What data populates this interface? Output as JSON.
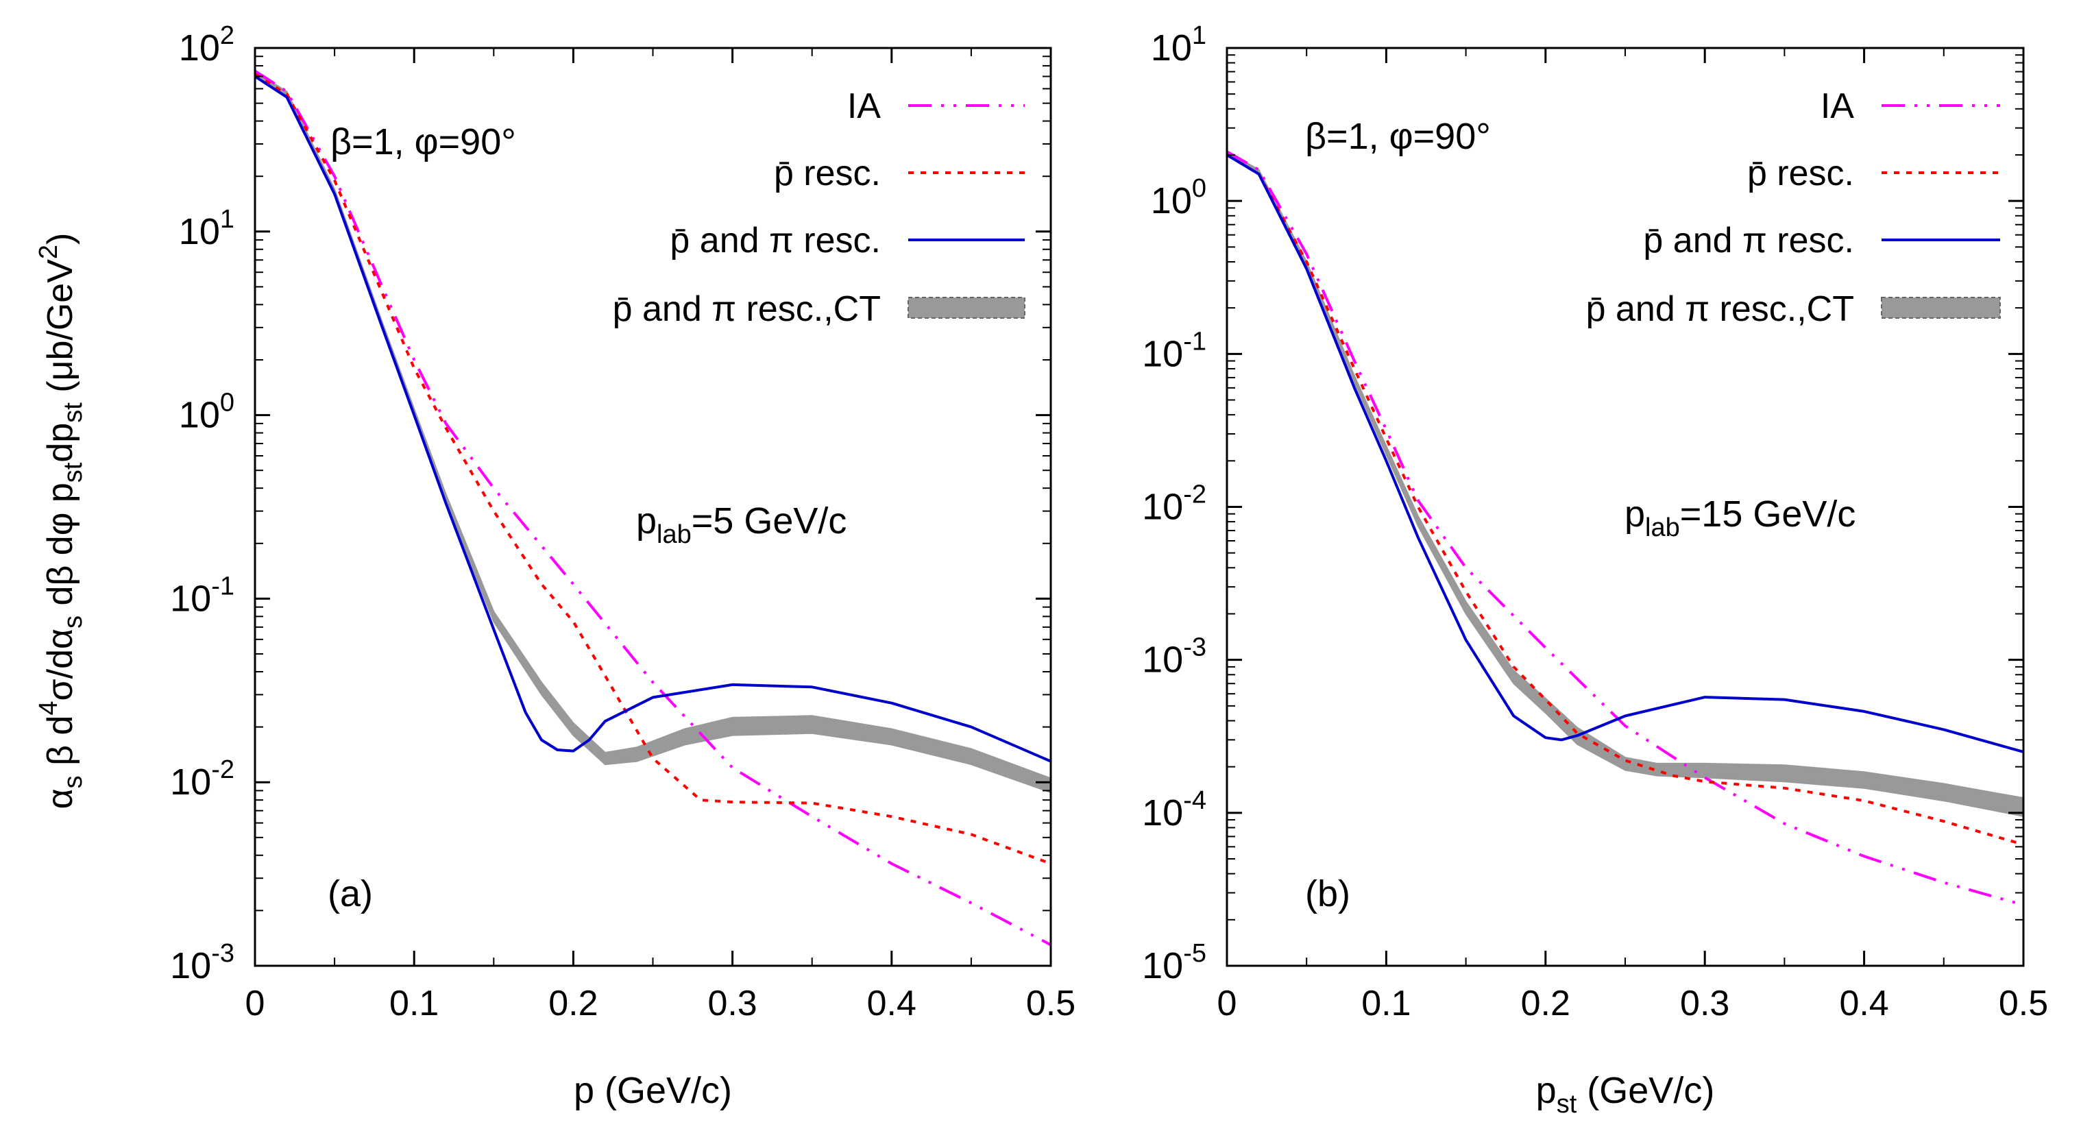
{
  "y_axis_label_parts": [
    "α",
    "s",
    " β d",
    "4",
    "σ/dα",
    "s",
    " dβ dφ p",
    "st",
    "dp",
    "st",
    " (μb/GeV",
    "2",
    ")"
  ],
  "legend": {
    "ia": "IA",
    "pbar_resc": "p̄ resc.",
    "pbar_pi_resc": "p̄ and π resc.",
    "pbar_pi_resc_ct": "p̄ and π resc.,CT"
  },
  "styles": {
    "ia_color": "#ff00ff",
    "pbar_color": "#ff0000",
    "pbar_pi_color": "#0000cc",
    "ct_color": "#999999",
    "axis_color": "#000000"
  },
  "chart_data": [
    {
      "type": "line",
      "panel_label": "(a)",
      "annotation_params": "β=1, φ=90°",
      "annotation_plab_main": "p",
      "annotation_plab_sub": "lab",
      "annotation_plab_value": "=5 GeV/c",
      "xlabel_main": "p",
      "xlabel_sub": "",
      "xlabel_unit": "(GeV/c)",
      "x_scale": "linear",
      "y_scale": "log",
      "xlim": [
        0,
        0.5
      ],
      "ylim_exp": [
        -3,
        2
      ],
      "x_tick_labels": [
        "0",
        "0.1",
        "0.2",
        "0.3",
        "0.4",
        "0.5"
      ],
      "y_tick_labels": [
        {
          "base": "10",
          "exp": "-3"
        },
        {
          "base": "10",
          "exp": "-2"
        },
        {
          "base": "10",
          "exp": "-1"
        },
        {
          "base": "10",
          "exp": "0"
        },
        {
          "base": "10",
          "exp": "1"
        },
        {
          "base": "10",
          "exp": "2"
        }
      ],
      "legend_position": "top-right",
      "series": [
        {
          "name": "IA",
          "style": "dash-dot-dot",
          "x": [
            0,
            0.02,
            0.05,
            0.08,
            0.1,
            0.12,
            0.15,
            0.2,
            0.25,
            0.3,
            0.35,
            0.4,
            0.45,
            0.5
          ],
          "y": [
            75,
            58,
            20,
            5,
            2.0,
            0.9,
            0.4,
            0.12,
            0.035,
            0.012,
            0.0065,
            0.0036,
            0.0022,
            0.0013
          ]
        },
        {
          "name": "p̄ resc.",
          "style": "dotted",
          "x": [
            0,
            0.02,
            0.05,
            0.08,
            0.1,
            0.12,
            0.15,
            0.18,
            0.2,
            0.22,
            0.25,
            0.28,
            0.3,
            0.35,
            0.4,
            0.45,
            0.5
          ],
          "y": [
            72,
            56,
            19,
            4.6,
            1.8,
            0.85,
            0.3,
            0.12,
            0.075,
            0.038,
            0.0135,
            0.008,
            0.0078,
            0.0077,
            0.0065,
            0.0052,
            0.0036
          ]
        },
        {
          "name": "p̄ and π resc.",
          "style": "solid",
          "x": [
            0,
            0.02,
            0.05,
            0.08,
            0.1,
            0.12,
            0.15,
            0.17,
            0.18,
            0.19,
            0.2,
            0.21,
            0.22,
            0.25,
            0.3,
            0.35,
            0.4,
            0.45,
            0.5
          ],
          "y": [
            70,
            54,
            16,
            3.0,
            1.0,
            0.33,
            0.068,
            0.024,
            0.017,
            0.015,
            0.0148,
            0.017,
            0.0215,
            0.029,
            0.034,
            0.033,
            0.027,
            0.02,
            0.013
          ]
        },
        {
          "name": "p̄ and π resc.,CT",
          "style": "band",
          "x": [
            0,
            0.02,
            0.05,
            0.08,
            0.1,
            0.12,
            0.15,
            0.18,
            0.2,
            0.22,
            0.24,
            0.27,
            0.3,
            0.35,
            0.4,
            0.45,
            0.5
          ],
          "y_low": [
            70,
            55,
            16,
            3.0,
            1.0,
            0.34,
            0.075,
            0.03,
            0.018,
            0.0125,
            0.013,
            0.016,
            0.018,
            0.0185,
            0.016,
            0.0125,
            0.0088
          ],
          "y_high": [
            74,
            58,
            17,
            3.2,
            1.08,
            0.37,
            0.085,
            0.035,
            0.021,
            0.0145,
            0.0155,
            0.0195,
            0.0225,
            0.023,
            0.0195,
            0.0152,
            0.0105
          ]
        }
      ]
    },
    {
      "type": "line",
      "panel_label": "(b)",
      "annotation_params": "β=1, φ=90°",
      "annotation_plab_main": "p",
      "annotation_plab_sub": "lab",
      "annotation_plab_value": "=15 GeV/c",
      "xlabel_main": "p",
      "xlabel_sub": "st",
      "xlabel_unit": "(GeV/c)",
      "x_scale": "linear",
      "y_scale": "log",
      "xlim": [
        0,
        0.5
      ],
      "ylim_exp": [
        -5,
        1
      ],
      "x_tick_labels": [
        "0",
        "0.1",
        "0.2",
        "0.3",
        "0.4",
        "0.5"
      ],
      "y_tick_labels": [
        {
          "base": "10",
          "exp": "-5"
        },
        {
          "base": "10",
          "exp": "-4"
        },
        {
          "base": "10",
          "exp": "-3"
        },
        {
          "base": "10",
          "exp": "-2"
        },
        {
          "base": "10",
          "exp": "-1"
        },
        {
          "base": "10",
          "exp": "0"
        },
        {
          "base": "10",
          "exp": "1"
        }
      ],
      "legend_position": "top-right",
      "series": [
        {
          "name": "IA",
          "style": "dash-dot-dot",
          "x": [
            0,
            0.02,
            0.05,
            0.08,
            0.1,
            0.12,
            0.15,
            0.2,
            0.25,
            0.3,
            0.35,
            0.4,
            0.45,
            0.5
          ],
          "y": [
            2.1,
            1.6,
            0.45,
            0.09,
            0.032,
            0.011,
            0.004,
            0.0012,
            0.00037,
            0.00017,
            8.5e-05,
            5.2e-05,
            3.5e-05,
            2.5e-05
          ]
        },
        {
          "name": "p̄ resc.",
          "style": "dotted",
          "x": [
            0,
            0.02,
            0.05,
            0.08,
            0.1,
            0.12,
            0.15,
            0.18,
            0.2,
            0.22,
            0.25,
            0.28,
            0.3,
            0.35,
            0.4,
            0.45,
            0.5
          ],
          "y": [
            2.0,
            1.5,
            0.4,
            0.08,
            0.028,
            0.01,
            0.0028,
            0.0009,
            0.00055,
            0.00033,
            0.00022,
            0.000175,
            0.00016,
            0.000145,
            0.00012,
            8.8e-05,
            6.2e-05
          ]
        },
        {
          "name": "p̄ and π resc.",
          "style": "solid",
          "x": [
            0,
            0.02,
            0.05,
            0.08,
            0.1,
            0.12,
            0.15,
            0.18,
            0.2,
            0.21,
            0.22,
            0.25,
            0.3,
            0.35,
            0.4,
            0.45,
            0.5
          ],
          "y": [
            2.0,
            1.5,
            0.36,
            0.06,
            0.02,
            0.0063,
            0.00135,
            0.00043,
            0.00031,
            0.0003,
            0.00032,
            0.00043,
            0.00057,
            0.00055,
            0.00046,
            0.00035,
            0.00025
          ]
        },
        {
          "name": "p̄ and π resc.,CT",
          "style": "band",
          "x": [
            0,
            0.02,
            0.05,
            0.08,
            0.1,
            0.12,
            0.15,
            0.18,
            0.2,
            0.22,
            0.25,
            0.27,
            0.3,
            0.35,
            0.4,
            0.45,
            0.5
          ],
          "y_low": [
            2.0,
            1.5,
            0.37,
            0.065,
            0.022,
            0.0075,
            0.002,
            0.0007,
            0.00045,
            0.00028,
            0.00019,
            0.000175,
            0.00017,
            0.00016,
            0.000145,
            0.00012,
            9.5e-05
          ]
        },
        {
          "name": "p̄ and π resc.,CT upper",
          "style": "band-upper",
          "x": [
            0,
            0.02,
            0.05,
            0.08,
            0.1,
            0.12,
            0.15,
            0.18,
            0.2,
            0.22,
            0.25,
            0.27,
            0.3,
            0.35,
            0.4,
            0.45,
            0.5
          ],
          "y": [
            2.1,
            1.6,
            0.4,
            0.072,
            0.025,
            0.0087,
            0.0024,
            0.00085,
            0.00056,
            0.00036,
            0.00023,
            0.00021,
            0.00021,
            0.000205,
            0.000185,
            0.000155,
            0.000125
          ]
        }
      ]
    }
  ]
}
